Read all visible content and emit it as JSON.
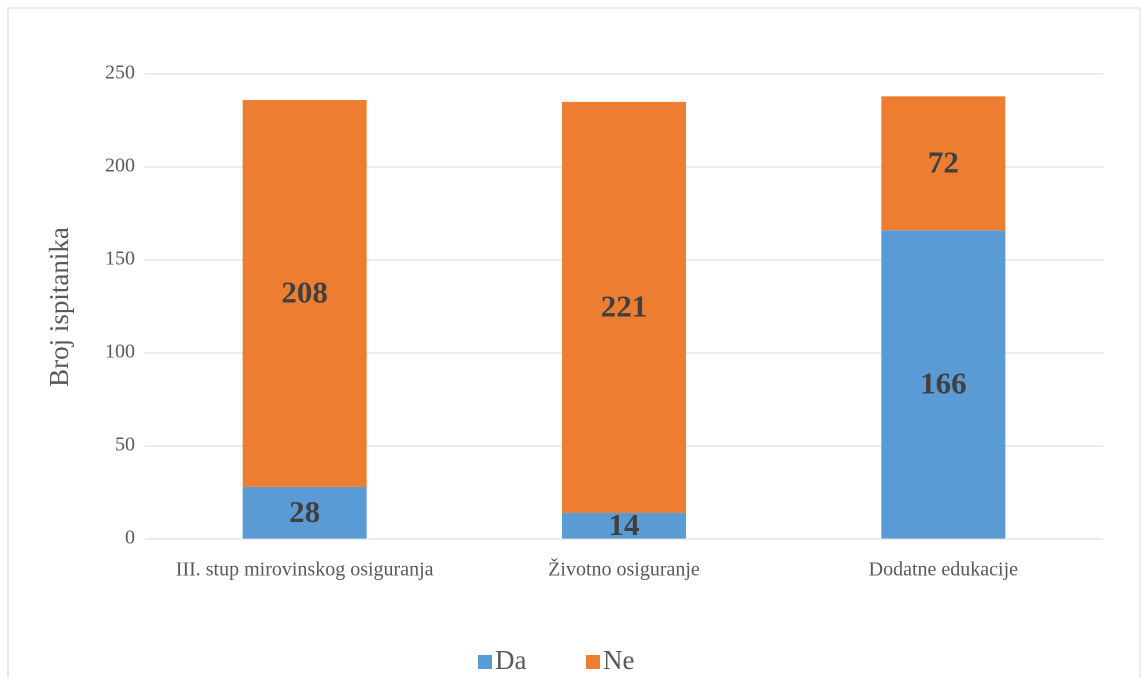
{
  "chart_data": {
    "type": "bar",
    "stacked": true,
    "y_label": "Broj ispitanika",
    "categories": [
      "III. stup mirovinskog osiguranja",
      "Životno osiguranje",
      "Dodatne edukacije"
    ],
    "series": [
      {
        "name": "Da",
        "color": "#5b9bd5",
        "values": [
          28,
          14,
          166
        ]
      },
      {
        "name": "Ne",
        "color": "#ed7d31",
        "values": [
          208,
          221,
          72
        ]
      }
    ],
    "ylim": [
      0,
      250
    ],
    "yticks": [
      0,
      50,
      100,
      150,
      200,
      250
    ],
    "grid": true,
    "legend": "bottom"
  }
}
